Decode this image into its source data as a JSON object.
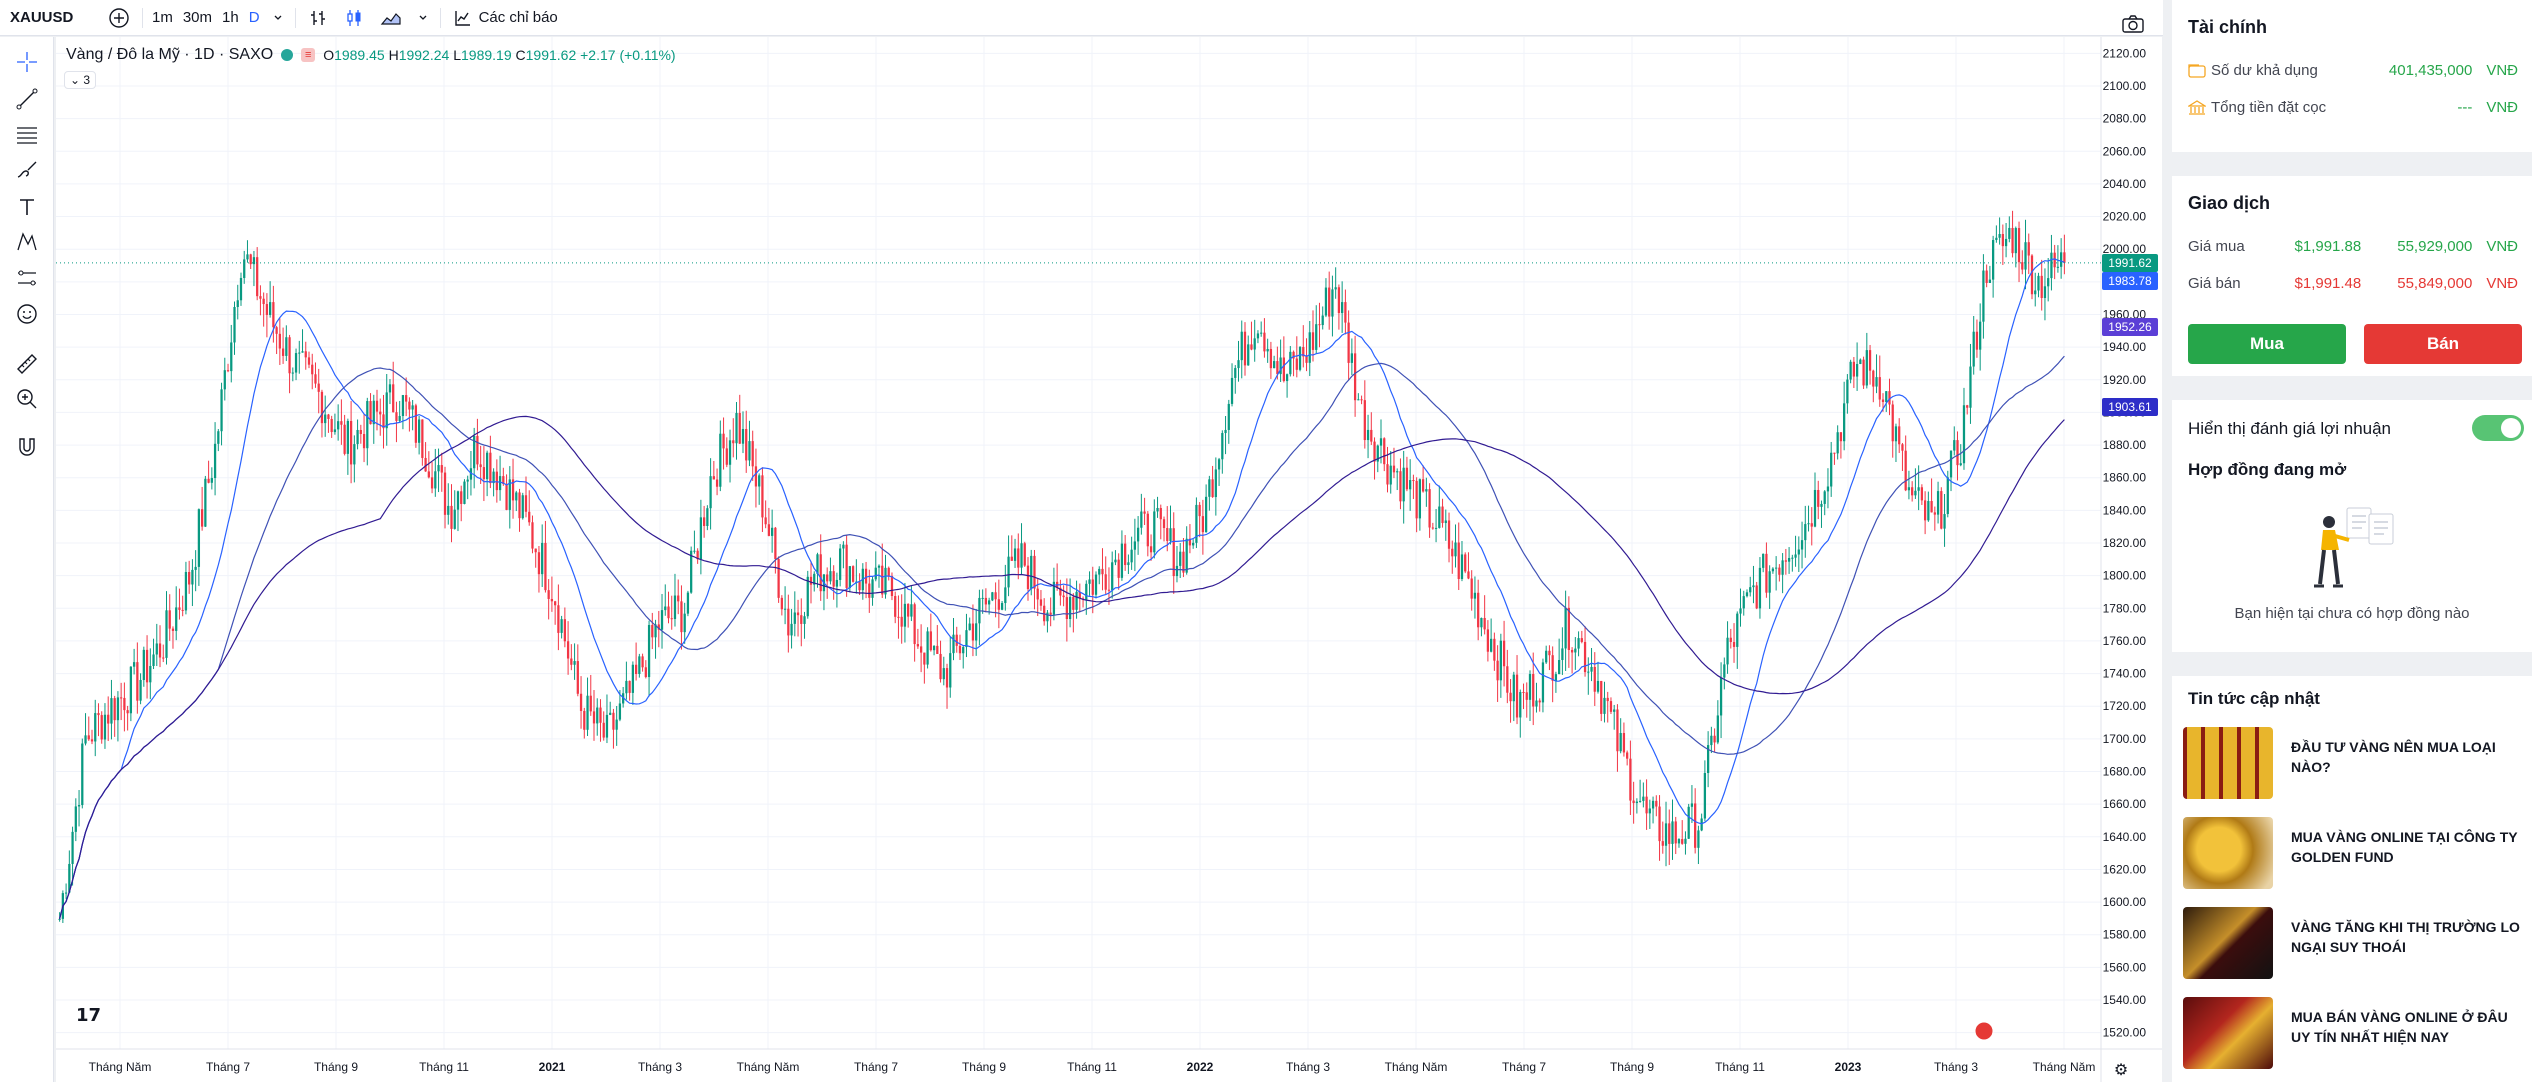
{
  "toolbar": {
    "symbol": "XAUUSD",
    "intervals": [
      "1m",
      "30m",
      "1h",
      "D"
    ],
    "active_interval": "D",
    "indicators_label": "Các chỉ báo"
  },
  "chart_header": {
    "title": "Vàng / Đô la Mỹ · 1D · SAXO",
    "o_label": "O",
    "o": "1989.45",
    "h_label": "H",
    "h": "1992.24",
    "l_label": "L",
    "l": "1989.19",
    "c_label": "C",
    "c": "1991.62",
    "change": "+2.17 (+0.11%)",
    "collapsed_count": "3"
  },
  "chart_data": {
    "type": "line",
    "title": "Vàng / Đô la Mỹ · 1D · SAXO",
    "x_tick_labels": [
      "Tháng Năm",
      "Tháng 7",
      "Tháng 9",
      "Tháng 11",
      "2021",
      "Tháng 3",
      "Tháng Năm",
      "Tháng 7",
      "Tháng 9",
      "Tháng 11",
      "2022",
      "Tháng 3",
      "Tháng Năm",
      "Tháng 7",
      "Tháng 9",
      "Tháng 11",
      "2023",
      "Tháng 3",
      "Tháng Năm"
    ],
    "y_ticks": [
      1520,
      1540,
      1560,
      1580,
      1600,
      1620,
      1640,
      1660,
      1680,
      1700,
      1720,
      1740,
      1760,
      1780,
      1800,
      1820,
      1840,
      1860,
      1880,
      1900,
      1920,
      1940,
      1960,
      1980,
      2000,
      2020,
      2040,
      2060,
      2080,
      2100,
      2120
    ],
    "ylim": [
      1510,
      2130
    ],
    "price_close_approx": [
      1590,
      1700,
      1720,
      1735,
      1760,
      1800,
      1880,
      2000,
      1960,
      1930,
      1910,
      1880,
      1895,
      1910,
      1880,
      1840,
      1880,
      1860,
      1830,
      1790,
      1720,
      1700,
      1730,
      1770,
      1780,
      1860,
      1895,
      1845,
      1770,
      1800,
      1810,
      1795,
      1790,
      1760,
      1740,
      1770,
      1790,
      1810,
      1780,
      1790,
      1800,
      1820,
      1830,
      1810,
      1840,
      1920,
      1960,
      1920,
      1940,
      1980,
      1900,
      1870,
      1850,
      1830,
      1800,
      1760,
      1720,
      1740,
      1770,
      1740,
      1690,
      1650,
      1640,
      1650,
      1750,
      1790,
      1810,
      1830,
      1870,
      1930,
      1920,
      1850,
      1830,
      1880,
      1990,
      2010,
      1980,
      1991.62
    ],
    "price_markers": [
      "1991.62",
      "1983.78",
      "1952.26",
      "1903.61"
    ],
    "grid": true,
    "series": [
      {
        "color": "#26a69a"
      },
      {
        "color": "#2962ff"
      },
      {
        "color": "#3f51b5"
      },
      {
        "color": "#6a1b9a"
      }
    ]
  },
  "finance": {
    "title": "Tài chính",
    "balance_label": "Số dư khả dụng",
    "balance_value": "401,435,000",
    "balance_unit": "VNĐ",
    "deposit_label": "Tổng tiền đặt cọc",
    "deposit_value": "---",
    "deposit_unit": "VNĐ"
  },
  "trade": {
    "title": "Giao dịch",
    "buy_label": "Giá mua",
    "buy_usd": "$1,991.88",
    "buy_vnd": "55,929,000",
    "sell_label": "Giá bán",
    "sell_usd": "$1,991.48",
    "sell_vnd": "55,849,000",
    "unit": "VNĐ",
    "buy_button": "Mua",
    "sell_button": "Bán"
  },
  "profit_toggle_label": "Hiển thị đánh giá lợi nhuận",
  "contracts": {
    "title": "Hợp đồng đang mở",
    "empty_text": "Bạn hiện tại chưa có hợp đồng nào"
  },
  "news": {
    "title": "Tin tức cập nhật",
    "items": [
      {
        "title": "Đầu tư vàng nên mua loại nào?"
      },
      {
        "title": "Mua vàng online tại công ty Golden Fund"
      },
      {
        "title": "Vàng tăng khi thị trường lo ngại suy thoái"
      },
      {
        "title": "Mua bán vàng online ở đâu uy tín nhất hiện nay"
      }
    ]
  },
  "colors": {
    "up": "#089981",
    "down": "#f23645",
    "buy": "#26a64a",
    "sell": "#e53935",
    "accent": "#2962ff"
  }
}
